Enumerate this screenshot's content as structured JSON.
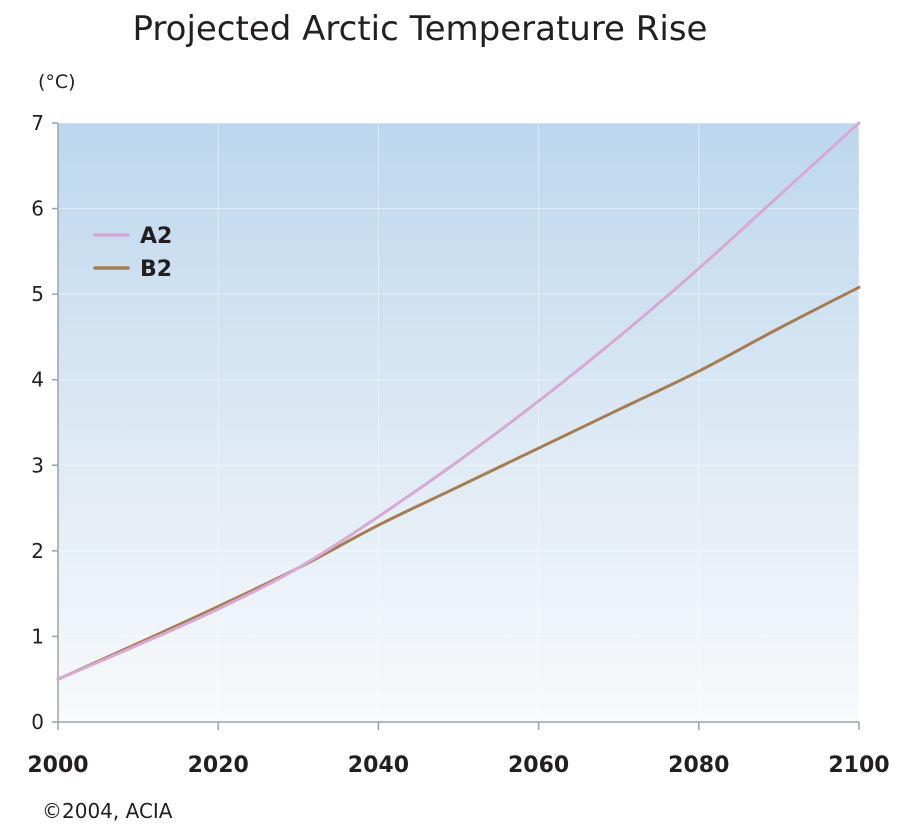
{
  "chart_data": {
    "type": "line",
    "title": "Projected Arctic Temperature Rise",
    "ylabel": "(°C)",
    "xlabel": "",
    "xlim": [
      2000,
      2100
    ],
    "ylim": [
      0,
      7
    ],
    "x_ticks": [
      "2000",
      "2020",
      "2040",
      "2060",
      "2080",
      "2100"
    ],
    "y_ticks": [
      "0",
      "1",
      "2",
      "3",
      "4",
      "5",
      "6",
      "7"
    ],
    "grid": true,
    "legend_position": "top-left",
    "background": "vertical gradient, blue at top to white at bottom",
    "series": [
      {
        "name": "A2",
        "color": "#d9a9d6",
        "x": [
          2000,
          2010,
          2020,
          2030,
          2040,
          2050,
          2060,
          2070,
          2080,
          2090,
          2100
        ],
        "y": [
          0.5,
          0.9,
          1.32,
          1.8,
          2.4,
          3.05,
          3.75,
          4.5,
          5.3,
          6.15,
          7.0
        ]
      },
      {
        "name": "B2",
        "color": "#a67c52",
        "x": [
          2000,
          2010,
          2020,
          2030,
          2040,
          2050,
          2060,
          2070,
          2080,
          2090,
          2100
        ],
        "y": [
          0.5,
          0.92,
          1.35,
          1.8,
          2.3,
          2.75,
          3.2,
          3.65,
          4.1,
          4.6,
          5.08
        ]
      }
    ]
  },
  "credit": "©2004, ACIA"
}
